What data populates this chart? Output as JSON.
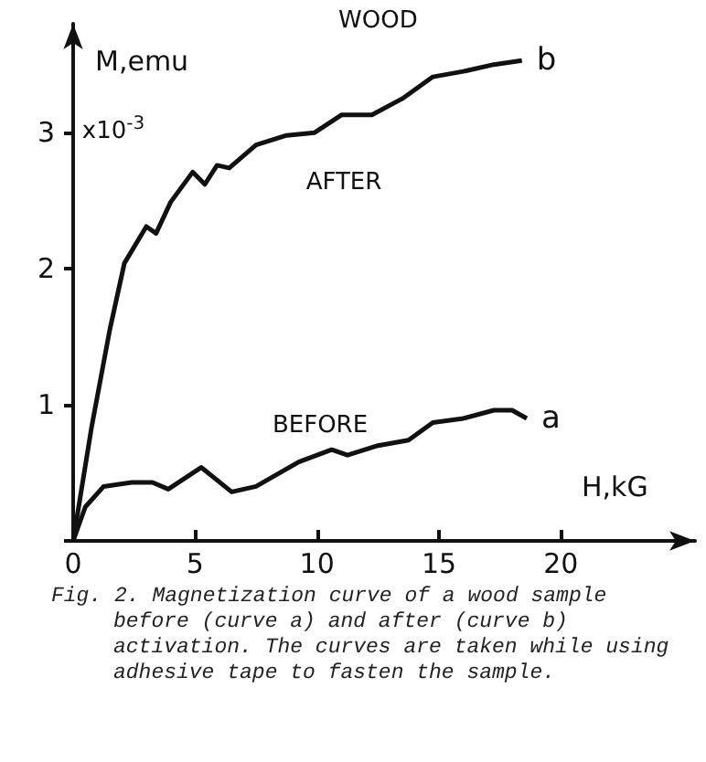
{
  "chart_data": {
    "type": "line",
    "title": "WOOD",
    "xlabel": "H,kG",
    "ylabel": "M,emu",
    "xlim": [
      0,
      25.5
    ],
    "ylim": [
      0,
      3.8
    ],
    "xticks": [
      0,
      5,
      10,
      15,
      20
    ],
    "yticks": [
      {
        "value": 0,
        "label": null
      },
      1,
      2,
      3
    ],
    "grid": false,
    "legend": false,
    "marker": "none",
    "line_style": "solid",
    "series": [
      {
        "name": "b",
        "color": "#111111",
        "x": [
          0,
          0.75,
          1.5,
          2.1,
          3.0,
          3.4,
          4.0,
          4.9,
          5.4,
          5.9,
          6.4,
          7.5,
          8.75,
          9.9,
          11.0,
          12.25,
          13.5,
          14.75,
          16.0,
          17.25,
          18.4
        ],
        "values": [
          0,
          0.83,
          1.55,
          2.04,
          2.31,
          2.26,
          2.49,
          2.71,
          2.62,
          2.76,
          2.74,
          2.91,
          2.98,
          3.0,
          3.13,
          3.13,
          3.25,
          3.41,
          3.45,
          3.5,
          3.53
        ]
      },
      {
        "name": "a",
        "color": "#111111",
        "x": [
          0,
          0.5,
          1.25,
          2.4,
          3.25,
          3.9,
          5.25,
          6.5,
          7.5,
          9.25,
          10.6,
          11.25,
          12.5,
          13.75,
          14.75,
          16.0,
          17.25,
          18.0,
          18.6
        ],
        "values": [
          0,
          0.25,
          0.4,
          0.43,
          0.43,
          0.38,
          0.54,
          0.36,
          0.4,
          0.58,
          0.67,
          0.63,
          0.7,
          0.74,
          0.87,
          0.9,
          0.96,
          0.96,
          0.9
        ]
      }
    ],
    "annotations": [
      "AFTER",
      "BEFORE",
      "x10$^{-3}$",
      "Fig. 2. Magnetization curve of a wood sample before (curve a) and after (curve b) activation. The curves are taken while using adhesive tape to fasten the sample."
    ]
  }
}
